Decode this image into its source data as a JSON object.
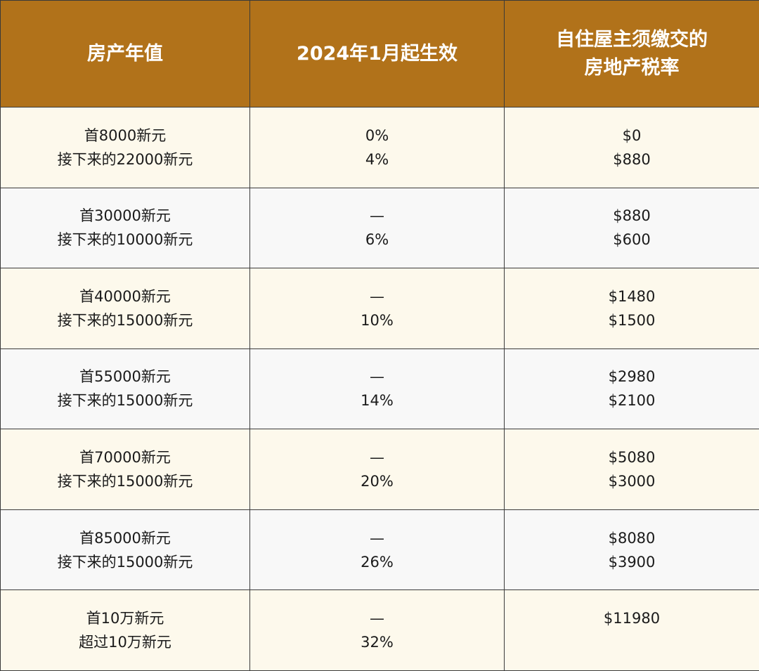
{
  "colors": {
    "header_bg": "#b1721a",
    "header_text": "#ffffff",
    "row_odd_bg": "#fdf9ec",
    "row_even_bg": "#f8f8f8",
    "border": "#3a3a3a"
  },
  "header": {
    "col1": "房产年值",
    "col2": "2024年1月起生效",
    "col3_line1": "自住屋主须缴交的",
    "col3_line2": "房地产税率"
  },
  "rows": [
    {
      "value": [
        "首8000新元",
        "接下来的22000新元"
      ],
      "rate": [
        "0%",
        "4%"
      ],
      "tax": [
        "$0",
        "$880"
      ]
    },
    {
      "value": [
        "首30000新元",
        "接下来的10000新元"
      ],
      "rate": [
        "—",
        "6%"
      ],
      "tax": [
        "$880",
        "$600"
      ]
    },
    {
      "value": [
        "首40000新元",
        "接下来的15000新元"
      ],
      "rate": [
        "—",
        "10%"
      ],
      "tax": [
        "$1480",
        "$1500"
      ]
    },
    {
      "value": [
        "首55000新元",
        "接下来的15000新元"
      ],
      "rate": [
        "—",
        "14%"
      ],
      "tax": [
        "$2980",
        "$2100"
      ]
    },
    {
      "value": [
        "首70000新元",
        "接下来的15000新元"
      ],
      "rate": [
        "—",
        "20%"
      ],
      "tax": [
        "$5080",
        "$3000"
      ]
    },
    {
      "value": [
        "首85000新元",
        "接下来的15000新元"
      ],
      "rate": [
        "—",
        "26%"
      ],
      "tax": [
        "$8080",
        "$3900"
      ]
    },
    {
      "value": [
        "首10万新元",
        "超过10万新元"
      ],
      "rate": [
        "—",
        "32%"
      ],
      "tax": [
        "$11980"
      ]
    }
  ]
}
